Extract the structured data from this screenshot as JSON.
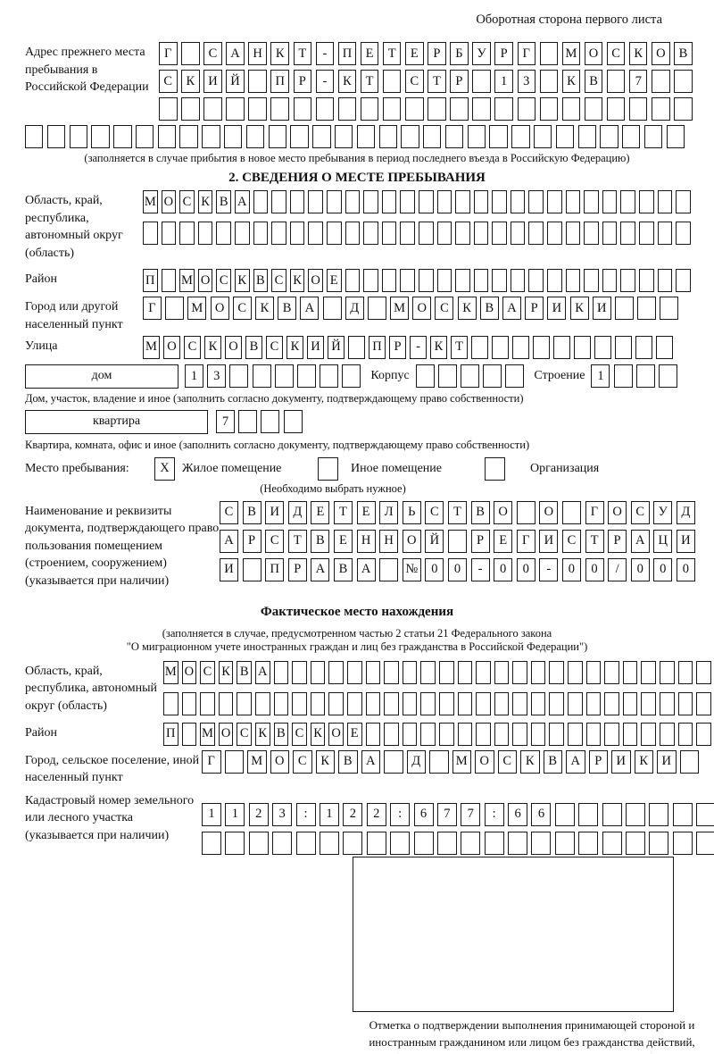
{
  "header": {
    "title": "Оборотная сторона первого листа"
  },
  "prev_address": {
    "label": "Адрес прежнего места пребывания в Российской Федерации",
    "row1": "Г САНКТ-ПЕТЕРБУРГ МОСКОВ",
    "row2": "СКИЙ ПР-КТ СТР 13 КВ 7  ",
    "row3": "                        ",
    "full_row": "                              ",
    "note": "(заполняется в случае прибытия в новое место пребывания в период последнего въезда в Российскую Федерацию)"
  },
  "section2": {
    "title": "2. СВЕДЕНИЯ О МЕСТЕ ПРЕБЫВАНИЯ",
    "region": {
      "label": "Область, край, республика, автономный округ (область)",
      "row1": "МОСКВА                        ",
      "row2": "                              "
    },
    "district": {
      "label": "Район",
      "row": "П МОСКВСКОЕ                   "
    },
    "city": {
      "label": "Город или другой населенный пункт",
      "row": "Г МОСКВА Д МОСКВАРИКИ   "
    },
    "street": {
      "label": "Улица",
      "row": "МОСКОВСКИЙ ПР-КТ          "
    },
    "house": {
      "house_label": "дом",
      "house_cells": "13      ",
      "korpus_label": "Корпус",
      "korpus_cells": "     ",
      "stroenie_label": "Строение",
      "stroenie_cells": "1   "
    },
    "house_note": "Дом, участок, владение и иное (заполнить согласно документу, подтверждающему право собственности)",
    "apartment": {
      "label": "квартира",
      "cells": "7   "
    },
    "apartment_note": "Квартира, комната, офис и иное (заполнить согласно документу, подтверждающему право собственности)",
    "stay_type": {
      "label": "Место пребывания:",
      "options": [
        {
          "label": "Жилое помещение",
          "mark": "X"
        },
        {
          "label": "Иное помещение",
          "mark": ""
        },
        {
          "label": "Организация",
          "mark": ""
        }
      ],
      "note": "(Необходимо выбрать нужное)"
    },
    "document": {
      "label": "Наименование и реквизиты документа, подтверждающего право пользования помещением (строением, сооружением) (указывается при наличии)",
      "row1": "СВИДЕТЕЛЬСТВО О ГОСУД",
      "row2": "АРСТВЕННОЙ РЕГИСТРАЦИ",
      "row3": "И ПРАВА №00-00-00/000"
    }
  },
  "actual_location": {
    "title": "Фактическое место нахождения",
    "note_line1": "(заполняется в случае, предусмотренном частью 2 статьи 21 Федерального закона",
    "note_line2": "\"О миграционном учете иностранных граждан и лиц без гражданства в Российской Федерации\")",
    "region": {
      "label": "Область, край, республика, автономный округ (область)",
      "row1": "МОСКВА                        ",
      "row2": "                              "
    },
    "district": {
      "label": "Район",
      "row": "П МОСКВСКОЕ                   "
    },
    "city": {
      "label": "Город, сельское поселение, иной населенный пункт",
      "row": "Г МОСКВА Д МОСКВАРИКИ "
    },
    "cadastre": {
      "label": "Кадастровый номер земельного или лесного участка (указывается при наличии)",
      "row1": "1123:122:677:66       ",
      "row2": "                      "
    }
  },
  "bottom": {
    "caption": "Отметка о подтверждении выполнения принимающей стороной и иностранным гражданином или лицом без гражданства действий, необходимых для его постановки на учет по месту пребывания"
  }
}
